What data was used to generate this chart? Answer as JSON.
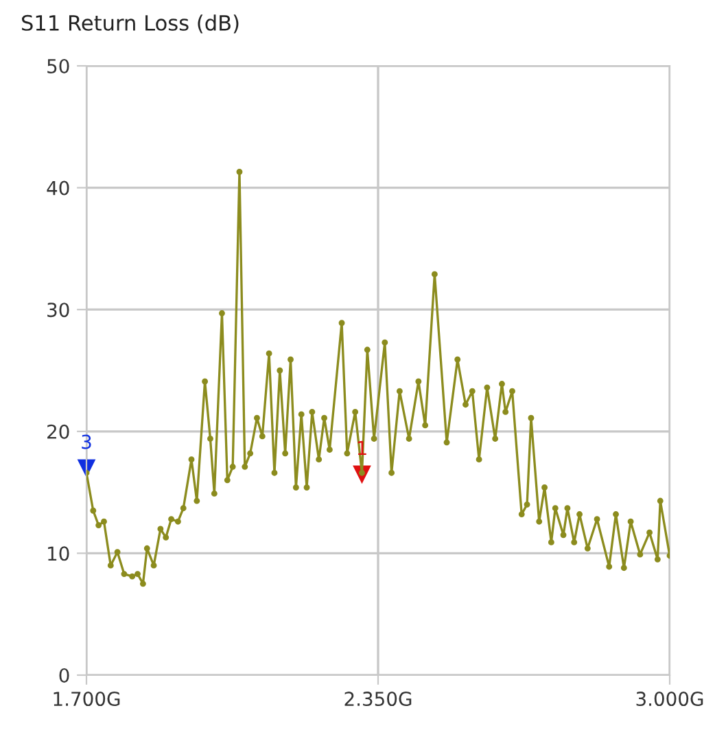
{
  "chart_data": {
    "type": "line",
    "title": "S11 Return Loss (dB)",
    "x": [
      1.7,
      1.715,
      1.727,
      1.739,
      1.754,
      1.769,
      1.784,
      1.802,
      1.814,
      1.826,
      1.835,
      1.85,
      1.865,
      1.877,
      1.889,
      1.904,
      1.916,
      1.934,
      1.946,
      1.964,
      1.976,
      1.985,
      2.002,
      2.014,
      2.026,
      2.041,
      2.053,
      2.065,
      2.08,
      2.092,
      2.107,
      2.119,
      2.131,
      2.143,
      2.155,
      2.167,
      2.179,
      2.191,
      2.203,
      2.218,
      2.23,
      2.242,
      2.269,
      2.281,
      2.299,
      2.314,
      2.326,
      2.341,
      2.365,
      2.38,
      2.398,
      2.419,
      2.44,
      2.455,
      2.476,
      2.503,
      2.527,
      2.545,
      2.56,
      2.575,
      2.593,
      2.611,
      2.626,
      2.634,
      2.649,
      2.67,
      2.682,
      2.691,
      2.709,
      2.721,
      2.736,
      2.745,
      2.763,
      2.772,
      2.787,
      2.799,
      2.817,
      2.838,
      2.865,
      2.88,
      2.898,
      2.913,
      2.934,
      2.955,
      2.973,
      2.979,
      3.0
    ],
    "series": [
      {
        "color": "#8c8c1e",
        "values": [
          16.6,
          13.5,
          12.3,
          12.6,
          9.0,
          10.1,
          8.3,
          8.1,
          8.3,
          7.5,
          10.4,
          9.0,
          12.0,
          11.3,
          12.8,
          12.6,
          13.7,
          17.7,
          14.3,
          24.1,
          19.4,
          14.9,
          29.7,
          16.0,
          17.1,
          41.3,
          17.1,
          18.2,
          21.1,
          19.6,
          26.4,
          16.6,
          25.0,
          18.2,
          25.9,
          15.4,
          21.4,
          15.4,
          21.6,
          17.7,
          21.1,
          18.5,
          28.9,
          18.2,
          21.6,
          16.6,
          26.7,
          19.4,
          27.3,
          16.6,
          23.3,
          19.4,
          24.1,
          20.5,
          32.9,
          19.1,
          25.9,
          22.2,
          23.3,
          17.7,
          23.6,
          19.4,
          23.9,
          21.6,
          23.3,
          13.2,
          14.0,
          21.1,
          12.6,
          15.4,
          10.9,
          13.7,
          11.5,
          13.7,
          10.9,
          13.2,
          10.4,
          12.8,
          8.9,
          13.2,
          8.8,
          12.6,
          9.9,
          11.7,
          9.5,
          14.3,
          9.8
        ]
      }
    ],
    "xlim": [
      1.7,
      3.0
    ],
    "ylim": [
      0,
      50
    ],
    "xticks": [
      {
        "value": 1.7,
        "label": "1.700G"
      },
      {
        "value": 2.35,
        "label": "2.350G"
      },
      {
        "value": 3.0,
        "label": "3.000G"
      }
    ],
    "yticks": [
      0,
      10,
      20,
      30,
      40,
      50
    ],
    "grid": true,
    "marker": "circle",
    "line_style": "solid",
    "annotations": [
      {
        "text": "3",
        "x": 1.7,
        "y": 17
      },
      {
        "text": "1",
        "x": 2.314,
        "y": 16.5
      }
    ]
  }
}
